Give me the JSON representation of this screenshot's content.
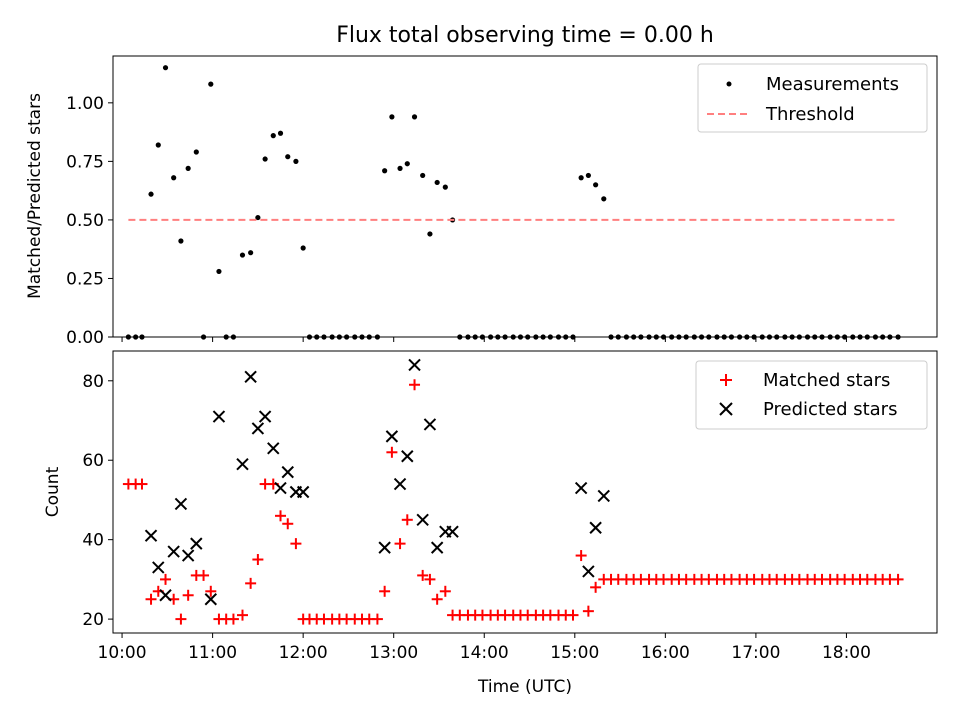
{
  "figure": {
    "title": "Flux total observing time = 0.00 h",
    "background": "#ffffff"
  },
  "chart_data": [
    {
      "type": "scatter",
      "panel": "top",
      "title": "Flux total observing time = 0.00 h",
      "xlabel": "",
      "ylabel": "Matched/Predicted stars",
      "x_unit": "hours (UTC)",
      "xlim": [
        9.9,
        19.0
      ],
      "ylim": [
        0.0,
        1.2
      ],
      "yticks": [
        0.0,
        0.25,
        0.5,
        0.75,
        1.0
      ],
      "ytick_labels": [
        "0.00",
        "0.25",
        "0.50",
        "0.75",
        "1.00"
      ],
      "xticks": [
        10,
        11,
        12,
        13,
        14,
        15,
        16,
        17,
        18
      ],
      "xtick_labels_visible": false,
      "grid": false,
      "legend": {
        "position": "top-right",
        "entries": [
          "Measurements",
          "Threshold"
        ]
      },
      "series": [
        {
          "name": "Measurements",
          "kind": "scatter",
          "marker": "dot",
          "color": "#000000",
          "points": [
            [
              10.07,
              0.0
            ],
            [
              10.15,
              0.0
            ],
            [
              10.22,
              0.0
            ],
            [
              10.32,
              0.61
            ],
            [
              10.4,
              0.82
            ],
            [
              10.48,
              1.15
            ],
            [
              10.57,
              0.68
            ],
            [
              10.65,
              0.41
            ],
            [
              10.73,
              0.72
            ],
            [
              10.82,
              0.79
            ],
            [
              10.9,
              0.0
            ],
            [
              10.98,
              1.08
            ],
            [
              11.07,
              0.28
            ],
            [
              11.15,
              0.0
            ],
            [
              11.23,
              0.0
            ],
            [
              11.33,
              0.35
            ],
            [
              11.42,
              0.36
            ],
            [
              11.5,
              0.51
            ],
            [
              11.58,
              0.76
            ],
            [
              11.67,
              0.86
            ],
            [
              11.75,
              0.87
            ],
            [
              11.83,
              0.77
            ],
            [
              11.92,
              0.75
            ],
            [
              12.0,
              0.38
            ],
            [
              12.07,
              0.0
            ],
            [
              12.15,
              0.0
            ],
            [
              12.23,
              0.0
            ],
            [
              12.32,
              0.0
            ],
            [
              12.4,
              0.0
            ],
            [
              12.48,
              0.0
            ],
            [
              12.57,
              0.0
            ],
            [
              12.65,
              0.0
            ],
            [
              12.73,
              0.0
            ],
            [
              12.82,
              0.0
            ],
            [
              12.9,
              0.71
            ],
            [
              12.98,
              0.94
            ],
            [
              13.07,
              0.72
            ],
            [
              13.15,
              0.74
            ],
            [
              13.23,
              0.94
            ],
            [
              13.32,
              0.69
            ],
            [
              13.4,
              0.44
            ],
            [
              13.48,
              0.66
            ],
            [
              13.57,
              0.64
            ],
            [
              13.65,
              0.5
            ],
            [
              13.73,
              0.0
            ],
            [
              13.82,
              0.0
            ],
            [
              13.9,
              0.0
            ],
            [
              13.98,
              0.0
            ],
            [
              14.07,
              0.0
            ],
            [
              14.15,
              0.0
            ],
            [
              14.23,
              0.0
            ],
            [
              14.32,
              0.0
            ],
            [
              14.4,
              0.0
            ],
            [
              14.48,
              0.0
            ],
            [
              14.57,
              0.0
            ],
            [
              14.65,
              0.0
            ],
            [
              14.73,
              0.0
            ],
            [
              14.82,
              0.0
            ],
            [
              14.9,
              0.0
            ],
            [
              14.98,
              0.0
            ],
            [
              15.07,
              0.68
            ],
            [
              15.15,
              0.69
            ],
            [
              15.23,
              0.65
            ],
            [
              15.32,
              0.59
            ],
            [
              15.4,
              0.0
            ],
            [
              15.48,
              0.0
            ],
            [
              15.57,
              0.0
            ],
            [
              15.65,
              0.0
            ],
            [
              15.73,
              0.0
            ],
            [
              15.82,
              0.0
            ],
            [
              15.9,
              0.0
            ],
            [
              15.98,
              0.0
            ],
            [
              16.07,
              0.0
            ],
            [
              16.15,
              0.0
            ],
            [
              16.23,
              0.0
            ],
            [
              16.32,
              0.0
            ],
            [
              16.4,
              0.0
            ],
            [
              16.48,
              0.0
            ],
            [
              16.57,
              0.0
            ],
            [
              16.65,
              0.0
            ],
            [
              16.73,
              0.0
            ],
            [
              16.82,
              0.0
            ],
            [
              16.9,
              0.0
            ],
            [
              16.98,
              0.0
            ],
            [
              17.07,
              0.0
            ],
            [
              17.15,
              0.0
            ],
            [
              17.23,
              0.0
            ],
            [
              17.32,
              0.0
            ],
            [
              17.4,
              0.0
            ],
            [
              17.48,
              0.0
            ],
            [
              17.57,
              0.0
            ],
            [
              17.65,
              0.0
            ],
            [
              17.73,
              0.0
            ],
            [
              17.82,
              0.0
            ],
            [
              17.9,
              0.0
            ],
            [
              17.98,
              0.0
            ],
            [
              18.07,
              0.0
            ],
            [
              18.15,
              0.0
            ],
            [
              18.23,
              0.0
            ],
            [
              18.32,
              0.0
            ],
            [
              18.4,
              0.0
            ],
            [
              18.48,
              0.0
            ],
            [
              18.57,
              0.0
            ]
          ]
        },
        {
          "name": "Threshold",
          "kind": "line",
          "style": "dashed",
          "color": "#ff7f7f",
          "points": [
            [
              10.07,
              0.5
            ],
            [
              18.57,
              0.5
            ]
          ]
        }
      ]
    },
    {
      "type": "scatter",
      "panel": "bottom",
      "title": "",
      "xlabel": "Time (UTC)",
      "ylabel": "Count",
      "x_unit": "hours (UTC)",
      "xlim": [
        9.9,
        19.0
      ],
      "ylim": [
        16.5,
        87.5
      ],
      "yticks": [
        20,
        40,
        60,
        80
      ],
      "ytick_labels": [
        "20",
        "40",
        "60",
        "80"
      ],
      "xticks": [
        10,
        11,
        12,
        13,
        14,
        15,
        16,
        17,
        18
      ],
      "xtick_labels": [
        "10:00",
        "11:00",
        "12:00",
        "13:00",
        "14:00",
        "15:00",
        "16:00",
        "17:00",
        "18:00"
      ],
      "grid": false,
      "legend": {
        "position": "top-right",
        "entries": [
          "Matched stars",
          "Predicted stars"
        ]
      },
      "series": [
        {
          "name": "Matched stars",
          "kind": "scatter",
          "marker": "plus",
          "color": "#ff0000",
          "points": [
            [
              10.07,
              54
            ],
            [
              10.15,
              54
            ],
            [
              10.22,
              54
            ],
            [
              10.32,
              25
            ],
            [
              10.4,
              27
            ],
            [
              10.48,
              30
            ],
            [
              10.57,
              25
            ],
            [
              10.65,
              20
            ],
            [
              10.73,
              26
            ],
            [
              10.82,
              31
            ],
            [
              10.9,
              31
            ],
            [
              10.98,
              27
            ],
            [
              11.07,
              20
            ],
            [
              11.15,
              20
            ],
            [
              11.23,
              20
            ],
            [
              11.33,
              21
            ],
            [
              11.42,
              29
            ],
            [
              11.5,
              35
            ],
            [
              11.58,
              54
            ],
            [
              11.67,
              54
            ],
            [
              11.75,
              46
            ],
            [
              11.83,
              44
            ],
            [
              11.92,
              39
            ],
            [
              12.0,
              20
            ],
            [
              12.07,
              20
            ],
            [
              12.15,
              20
            ],
            [
              12.23,
              20
            ],
            [
              12.32,
              20
            ],
            [
              12.4,
              20
            ],
            [
              12.48,
              20
            ],
            [
              12.57,
              20
            ],
            [
              12.65,
              20
            ],
            [
              12.73,
              20
            ],
            [
              12.82,
              20
            ],
            [
              12.9,
              27
            ],
            [
              12.98,
              62
            ],
            [
              13.07,
              39
            ],
            [
              13.15,
              45
            ],
            [
              13.23,
              79
            ],
            [
              13.32,
              31
            ],
            [
              13.4,
              30
            ],
            [
              13.48,
              25
            ],
            [
              13.57,
              27
            ],
            [
              13.65,
              21
            ],
            [
              13.73,
              21
            ],
            [
              13.82,
              21
            ],
            [
              13.9,
              21
            ],
            [
              13.98,
              21
            ],
            [
              14.07,
              21
            ],
            [
              14.15,
              21
            ],
            [
              14.23,
              21
            ],
            [
              14.32,
              21
            ],
            [
              14.4,
              21
            ],
            [
              14.48,
              21
            ],
            [
              14.57,
              21
            ],
            [
              14.65,
              21
            ],
            [
              14.73,
              21
            ],
            [
              14.82,
              21
            ],
            [
              14.9,
              21
            ],
            [
              14.98,
              21
            ],
            [
              15.07,
              36
            ],
            [
              15.15,
              22
            ],
            [
              15.23,
              28
            ],
            [
              15.32,
              30
            ],
            [
              15.4,
              30
            ],
            [
              15.48,
              30
            ],
            [
              15.57,
              30
            ],
            [
              15.65,
              30
            ],
            [
              15.73,
              30
            ],
            [
              15.82,
              30
            ],
            [
              15.9,
              30
            ],
            [
              15.98,
              30
            ],
            [
              16.07,
              30
            ],
            [
              16.15,
              30
            ],
            [
              16.23,
              30
            ],
            [
              16.32,
              30
            ],
            [
              16.4,
              30
            ],
            [
              16.48,
              30
            ],
            [
              16.57,
              30
            ],
            [
              16.65,
              30
            ],
            [
              16.73,
              30
            ],
            [
              16.82,
              30
            ],
            [
              16.9,
              30
            ],
            [
              16.98,
              30
            ],
            [
              17.07,
              30
            ],
            [
              17.15,
              30
            ],
            [
              17.23,
              30
            ],
            [
              17.32,
              30
            ],
            [
              17.4,
              30
            ],
            [
              17.48,
              30
            ],
            [
              17.57,
              30
            ],
            [
              17.65,
              30
            ],
            [
              17.73,
              30
            ],
            [
              17.82,
              30
            ],
            [
              17.9,
              30
            ],
            [
              17.98,
              30
            ],
            [
              18.07,
              30
            ],
            [
              18.15,
              30
            ],
            [
              18.23,
              30
            ],
            [
              18.32,
              30
            ],
            [
              18.4,
              30
            ],
            [
              18.48,
              30
            ],
            [
              18.57,
              30
            ]
          ]
        },
        {
          "name": "Predicted stars",
          "kind": "scatter",
          "marker": "x",
          "color": "#000000",
          "points": [
            [
              10.32,
              41
            ],
            [
              10.4,
              33
            ],
            [
              10.48,
              26
            ],
            [
              10.57,
              37
            ],
            [
              10.65,
              49
            ],
            [
              10.73,
              36
            ],
            [
              10.82,
              39
            ],
            [
              10.98,
              25
            ],
            [
              11.07,
              71
            ],
            [
              11.33,
              59
            ],
            [
              11.42,
              81
            ],
            [
              11.5,
              68
            ],
            [
              11.58,
              71
            ],
            [
              11.67,
              63
            ],
            [
              11.75,
              53
            ],
            [
              11.83,
              57
            ],
            [
              11.92,
              52
            ],
            [
              12.0,
              52
            ],
            [
              12.9,
              38
            ],
            [
              12.98,
              66
            ],
            [
              13.07,
              54
            ],
            [
              13.15,
              61
            ],
            [
              13.23,
              84
            ],
            [
              13.32,
              45
            ],
            [
              13.4,
              69
            ],
            [
              13.48,
              38
            ],
            [
              13.57,
              42
            ],
            [
              13.65,
              42
            ],
            [
              15.07,
              53
            ],
            [
              15.15,
              32
            ],
            [
              15.23,
              43
            ],
            [
              15.32,
              51
            ]
          ]
        }
      ]
    }
  ]
}
